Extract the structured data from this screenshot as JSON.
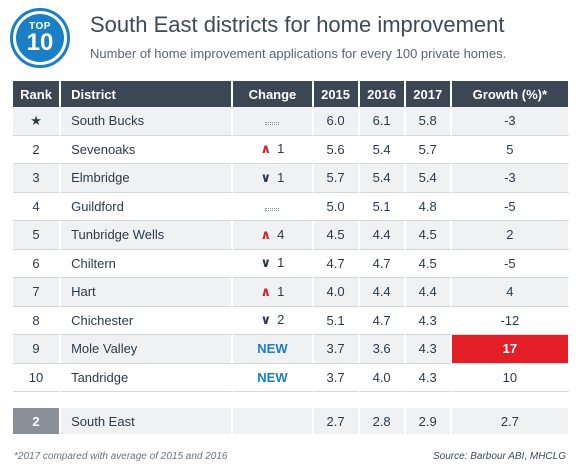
{
  "badge": {
    "top": "TOP",
    "number": "10"
  },
  "title": "South East districts for home improvement",
  "subtitle": "Number of home improvement applications for every 100 private homes.",
  "columns": {
    "rank": "Rank",
    "district": "District",
    "change": "Change",
    "y2015": "2015",
    "y2016": "2016",
    "y2017": "2017",
    "growth": "Growth (%)*"
  },
  "rows": [
    {
      "rank": "★",
      "district": "South Bucks",
      "change_type": "same",
      "change": "",
      "y2015": "6.0",
      "y2016": "6.1",
      "y2017": "5.8",
      "growth": "-3"
    },
    {
      "rank": "2",
      "district": "Sevenoaks",
      "change_type": "up",
      "change": "1",
      "y2015": "5.6",
      "y2016": "5.4",
      "y2017": "5.7",
      "growth": "5"
    },
    {
      "rank": "3",
      "district": "Elmbridge",
      "change_type": "down",
      "change": "1",
      "y2015": "5.7",
      "y2016": "5.4",
      "y2017": "5.4",
      "growth": "-3"
    },
    {
      "rank": "4",
      "district": "Guildford",
      "change_type": "same",
      "change": "",
      "y2015": "5.0",
      "y2016": "5.1",
      "y2017": "4.8",
      "growth": "-5"
    },
    {
      "rank": "5",
      "district": "Tunbridge Wells",
      "change_type": "up",
      "change": "4",
      "y2015": "4.5",
      "y2016": "4.4",
      "y2017": "4.5",
      "growth": "2"
    },
    {
      "rank": "6",
      "district": "Chiltern",
      "change_type": "down",
      "change": "1",
      "y2015": "4.7",
      "y2016": "4.7",
      "y2017": "4.5",
      "growth": "-5"
    },
    {
      "rank": "7",
      "district": "Hart",
      "change_type": "up",
      "change": "1",
      "y2015": "4.0",
      "y2016": "4.4",
      "y2017": "4.4",
      "growth": "4"
    },
    {
      "rank": "8",
      "district": "Chichester",
      "change_type": "down",
      "change": "2",
      "y2015": "5.1",
      "y2016": "4.7",
      "y2017": "4.3",
      "growth": "-12"
    },
    {
      "rank": "9",
      "district": "Mole Valley",
      "change_type": "new",
      "change": "NEW",
      "y2015": "3.7",
      "y2016": "3.6",
      "y2017": "4.3",
      "growth": "17",
      "highlight": true
    },
    {
      "rank": "10",
      "district": "Tandridge",
      "change_type": "new",
      "change": "NEW",
      "y2015": "3.7",
      "y2016": "4.0",
      "y2017": "4.3",
      "growth": "10"
    }
  ],
  "total": {
    "rank": "2",
    "district": "South East",
    "change": "",
    "y2015": "2.7",
    "y2016": "2.8",
    "y2017": "2.9",
    "growth": "2.7"
  },
  "footnote": "*2017 compared with average of 2015 and 2016",
  "source": "Source: Barbour ABI, MHCLG",
  "colors": {
    "accent": "#1a7fc4",
    "header": "#3c4756",
    "up": "#d42027",
    "highlight": "#e41e26"
  },
  "chart_data": {
    "type": "table",
    "title": "South East districts for home improvement",
    "subtitle": "Number of home improvement applications for every 100 private homes.",
    "columns": [
      "Rank",
      "District",
      "Change",
      "2015",
      "2016",
      "2017",
      "Growth (%)*"
    ],
    "rows": [
      [
        "★",
        "South Bucks",
        "",
        6.0,
        6.1,
        5.8,
        -3
      ],
      [
        "2",
        "Sevenoaks",
        "↑1",
        5.6,
        5.4,
        5.7,
        5
      ],
      [
        "3",
        "Elmbridge",
        "↓1",
        5.7,
        5.4,
        5.4,
        -3
      ],
      [
        "4",
        "Guildford",
        "",
        5.0,
        5.1,
        4.8,
        -5
      ],
      [
        "5",
        "Tunbridge Wells",
        "↑4",
        4.5,
        4.4,
        4.5,
        2
      ],
      [
        "6",
        "Chiltern",
        "↓1",
        4.7,
        4.7,
        4.5,
        -5
      ],
      [
        "7",
        "Hart",
        "↑1",
        4.0,
        4.4,
        4.4,
        4
      ],
      [
        "8",
        "Chichester",
        "↓2",
        5.1,
        4.7,
        4.3,
        -12
      ],
      [
        "9",
        "Mole Valley",
        "NEW",
        3.7,
        3.6,
        4.3,
        17
      ],
      [
        "10",
        "Tandridge",
        "NEW",
        3.7,
        4.0,
        4.3,
        10
      ]
    ],
    "total_row": [
      "2",
      "South East",
      "",
      2.7,
      2.8,
      2.9,
      2.7
    ]
  }
}
